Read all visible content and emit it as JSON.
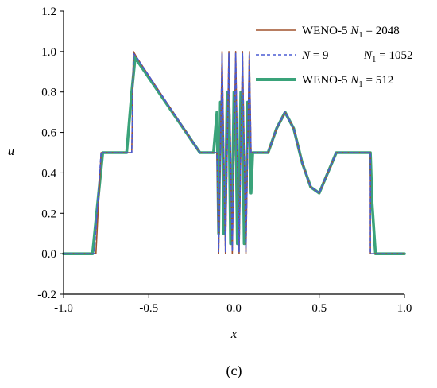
{
  "chart_data": {
    "type": "line",
    "title": "",
    "xlabel": "x",
    "ylabel": "u",
    "panel_label": "(c)",
    "xlim": [
      -1.0,
      1.0
    ],
    "ylim": [
      -0.2,
      1.2
    ],
    "xticks": [
      "-1.0",
      "-0.5",
      "0.0",
      "0.5",
      "1.0"
    ],
    "yticks": [
      "-0.2",
      "0.0",
      "0.2",
      "0.4",
      "0.6",
      "0.8",
      "1.0",
      "1.2"
    ],
    "grid": false,
    "legend_position": "top-right",
    "legend": [
      {
        "label": "WENO-5 N₁ = 2048",
        "parts": [
          "WENO-5 ",
          "N",
          "1",
          " = 2048"
        ],
        "color": "#a0522d",
        "style": "solid"
      },
      {
        "label": "N = 9     N₁ = 1052",
        "parts": [
          "N",
          " = 9",
          "N",
          "1",
          " = 1052"
        ],
        "color": "#4a5bd4",
        "style": "dashed"
      },
      {
        "label": "WENO-5 N₁ = 512",
        "parts": [
          "WENO-5 ",
          "N",
          "1",
          " = 512"
        ],
        "color": "#3aa37a",
        "style": "thick"
      }
    ],
    "series": [
      {
        "name": "WENO-5 N1 = 2048",
        "color": "#a0522d",
        "x": [
          -1.0,
          -0.81,
          -0.78,
          -0.6,
          -0.59,
          -0.57,
          -0.2,
          -0.1,
          -0.1,
          -0.09,
          -0.08,
          -0.07,
          -0.06,
          -0.05,
          -0.04,
          -0.03,
          -0.02,
          -0.01,
          0.0,
          0.01,
          0.02,
          0.03,
          0.04,
          0.05,
          0.06,
          0.07,
          0.08,
          0.09,
          0.1,
          0.1,
          0.2,
          0.25,
          0.3,
          0.35,
          0.4,
          0.45,
          0.5,
          0.55,
          0.6,
          0.8,
          0.8,
          1.0
        ],
        "y": [
          0.0,
          0.0,
          0.5,
          0.5,
          1.0,
          0.97,
          0.5,
          0.5,
          0.5,
          0.0,
          0.5,
          1.0,
          0.5,
          0.0,
          0.5,
          1.0,
          0.5,
          0.0,
          0.5,
          1.0,
          0.5,
          0.0,
          0.5,
          1.0,
          0.5,
          0.0,
          0.5,
          1.0,
          0.5,
          0.5,
          0.5,
          0.62,
          0.7,
          0.62,
          0.45,
          0.33,
          0.3,
          0.4,
          0.5,
          0.5,
          0.0,
          0.0
        ]
      },
      {
        "name": "N = 9 N1 = 1052",
        "color": "#4a5bd4",
        "x": [
          -1.0,
          -0.82,
          -0.78,
          -0.6,
          -0.59,
          -0.57,
          -0.2,
          -0.1,
          -0.1,
          -0.09,
          -0.08,
          -0.07,
          -0.06,
          -0.05,
          -0.04,
          -0.03,
          -0.02,
          -0.01,
          0.0,
          0.01,
          0.02,
          0.03,
          0.04,
          0.05,
          0.06,
          0.07,
          0.08,
          0.09,
          0.1,
          0.1,
          0.2,
          0.25,
          0.3,
          0.35,
          0.4,
          0.45,
          0.5,
          0.55,
          0.6,
          0.8,
          0.8,
          1.0
        ],
        "y": [
          0.0,
          0.0,
          0.5,
          0.5,
          0.99,
          0.97,
          0.5,
          0.5,
          0.5,
          0.01,
          0.5,
          0.99,
          0.5,
          0.01,
          0.5,
          0.99,
          0.5,
          0.01,
          0.5,
          0.99,
          0.5,
          0.01,
          0.5,
          0.99,
          0.5,
          0.01,
          0.5,
          0.99,
          0.5,
          0.5,
          0.5,
          0.62,
          0.7,
          0.62,
          0.45,
          0.33,
          0.3,
          0.4,
          0.5,
          0.5,
          0.0,
          0.0
        ]
      },
      {
        "name": "WENO-5 N1 = 512",
        "color": "#3aa37a",
        "x": [
          -1.0,
          -0.83,
          -0.8,
          -0.77,
          -0.63,
          -0.6,
          -0.58,
          -0.2,
          -0.12,
          -0.1,
          -0.09,
          -0.08,
          -0.07,
          -0.06,
          -0.05,
          -0.04,
          -0.03,
          -0.02,
          -0.01,
          0.0,
          0.01,
          0.02,
          0.03,
          0.04,
          0.05,
          0.06,
          0.07,
          0.08,
          0.09,
          0.1,
          0.11,
          0.2,
          0.25,
          0.3,
          0.35,
          0.4,
          0.45,
          0.5,
          0.55,
          0.6,
          0.8,
          0.81,
          0.83,
          1.0
        ],
        "y": [
          0.0,
          0.0,
          0.25,
          0.5,
          0.5,
          0.8,
          0.97,
          0.5,
          0.5,
          0.7,
          0.1,
          0.75,
          0.75,
          0.1,
          0.25,
          0.8,
          0.75,
          0.05,
          0.25,
          0.8,
          0.72,
          0.05,
          0.25,
          0.8,
          0.72,
          0.05,
          0.25,
          0.75,
          0.7,
          0.3,
          0.5,
          0.5,
          0.62,
          0.7,
          0.62,
          0.45,
          0.33,
          0.3,
          0.4,
          0.5,
          0.5,
          0.25,
          0.0,
          0.0
        ]
      }
    ]
  }
}
